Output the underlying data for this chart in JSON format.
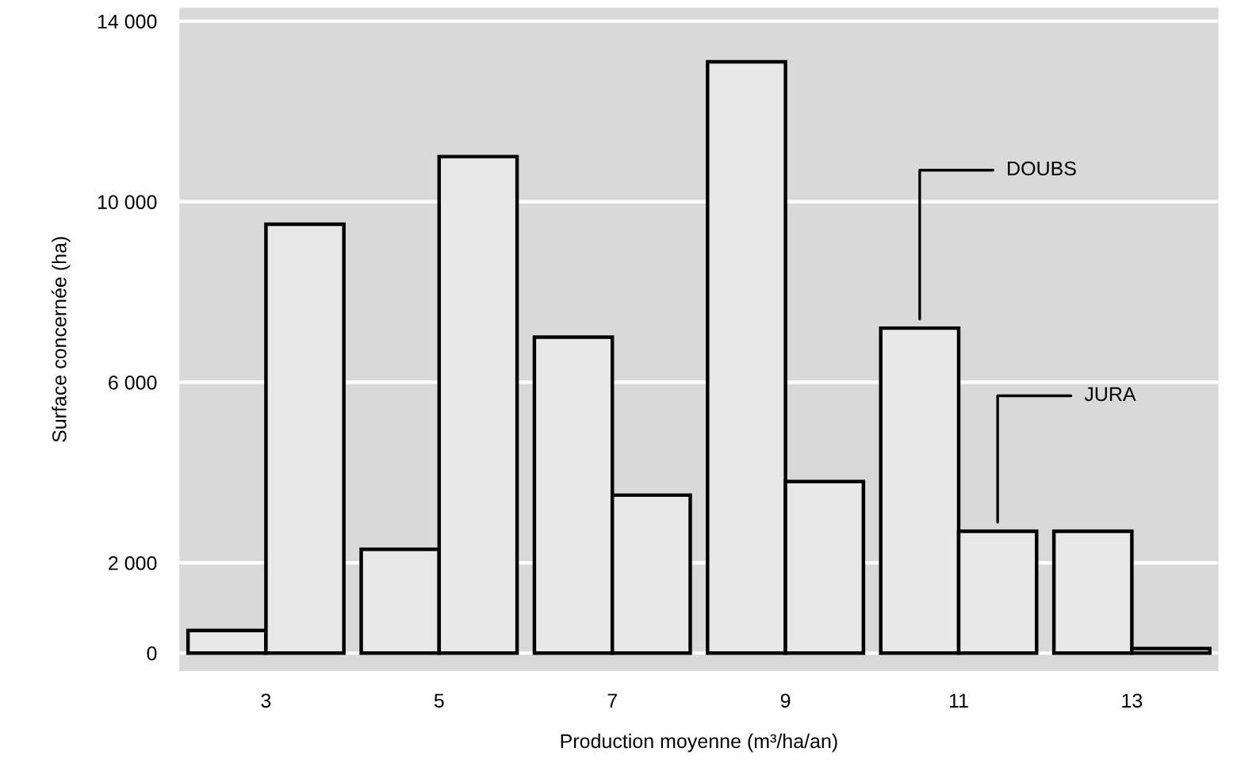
{
  "chart_data": {
    "type": "bar",
    "xlabel": "Production moyenne (m³/ha/an)",
    "ylabel": "Surface concernée (ha)",
    "categories": [
      "3",
      "5",
      "7",
      "9",
      "11",
      "13"
    ],
    "series": [
      {
        "name": "DOUBS",
        "color": "#e8e8e8",
        "values": [
          500,
          2300,
          7000,
          13100,
          7200,
          2700
        ]
      },
      {
        "name": "JURA",
        "color": "#e8e8e8",
        "values": [
          9500,
          11000,
          3500,
          3800,
          2700,
          100
        ]
      }
    ],
    "ylim": [
      -400,
      14300
    ],
    "yticks": [
      {
        "value": 0,
        "label": "0"
      },
      {
        "value": 2000,
        "label": "2 000"
      },
      {
        "value": 6000,
        "label": "6 000"
      },
      {
        "value": 10000,
        "label": "10 000"
      },
      {
        "value": 14000,
        "label": "14 000"
      }
    ],
    "grid": "y",
    "legend": false
  }
}
